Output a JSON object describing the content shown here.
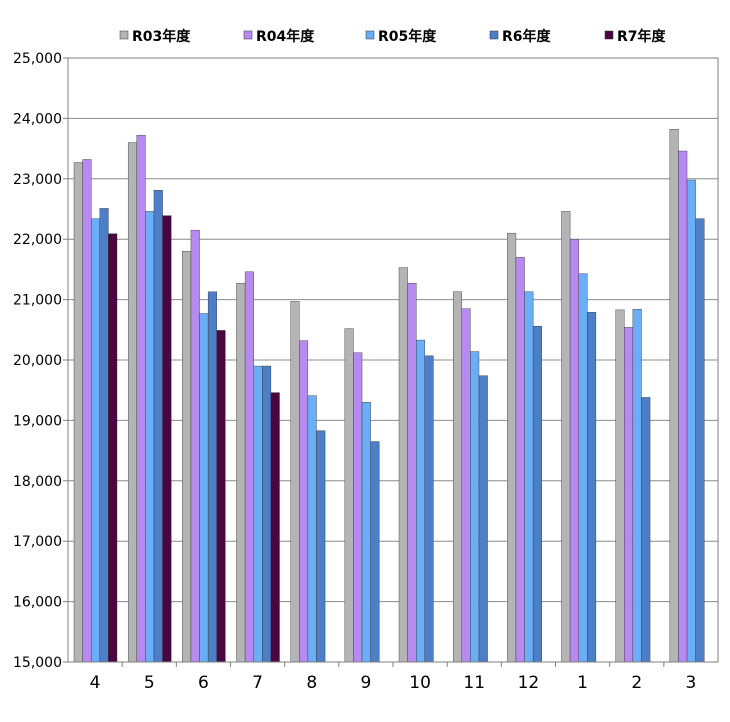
{
  "chart_data": {
    "type": "bar",
    "categories": [
      "4",
      "5",
      "6",
      "7",
      "8",
      "9",
      "10",
      "11",
      "12",
      "1",
      "2",
      "3"
    ],
    "series": [
      {
        "name": "R03年度",
        "color": "#b4b4b4",
        "values": [
          23270,
          23600,
          21800,
          21270,
          20970,
          20520,
          21530,
          21130,
          22100,
          22460,
          20830,
          23820
        ]
      },
      {
        "name": "R04年度",
        "color": "#b68af0",
        "values": [
          23320,
          23720,
          22150,
          21460,
          20320,
          20120,
          21270,
          20850,
          21700,
          22000,
          20540,
          23460
        ]
      },
      {
        "name": "R05年度",
        "color": "#6aaef8",
        "values": [
          22340,
          22460,
          20770,
          19900,
          19410,
          19300,
          20330,
          20140,
          21130,
          21430,
          20840,
          22980
        ]
      },
      {
        "name": "R6年度",
        "color": "#4d7ec8",
        "values": [
          22510,
          22810,
          21130,
          19900,
          18830,
          18650,
          20070,
          19740,
          20560,
          20790,
          19380,
          22340
        ]
      },
      {
        "name": "R7年度",
        "color": "#4a0640",
        "values": [
          22090,
          22390,
          20490,
          19460,
          null,
          null,
          null,
          null,
          null,
          null,
          null,
          null
        ]
      }
    ],
    "title": "",
    "xlabel": "",
    "ylabel": "",
    "ylim": [
      15000,
      25000
    ],
    "yticks": [
      "15,000",
      "16,000",
      "17,000",
      "18,000",
      "19,000",
      "20,000",
      "21,000",
      "22,000",
      "23,000",
      "24,000",
      "25,000"
    ],
    "grid": true,
    "legend": "top"
  }
}
